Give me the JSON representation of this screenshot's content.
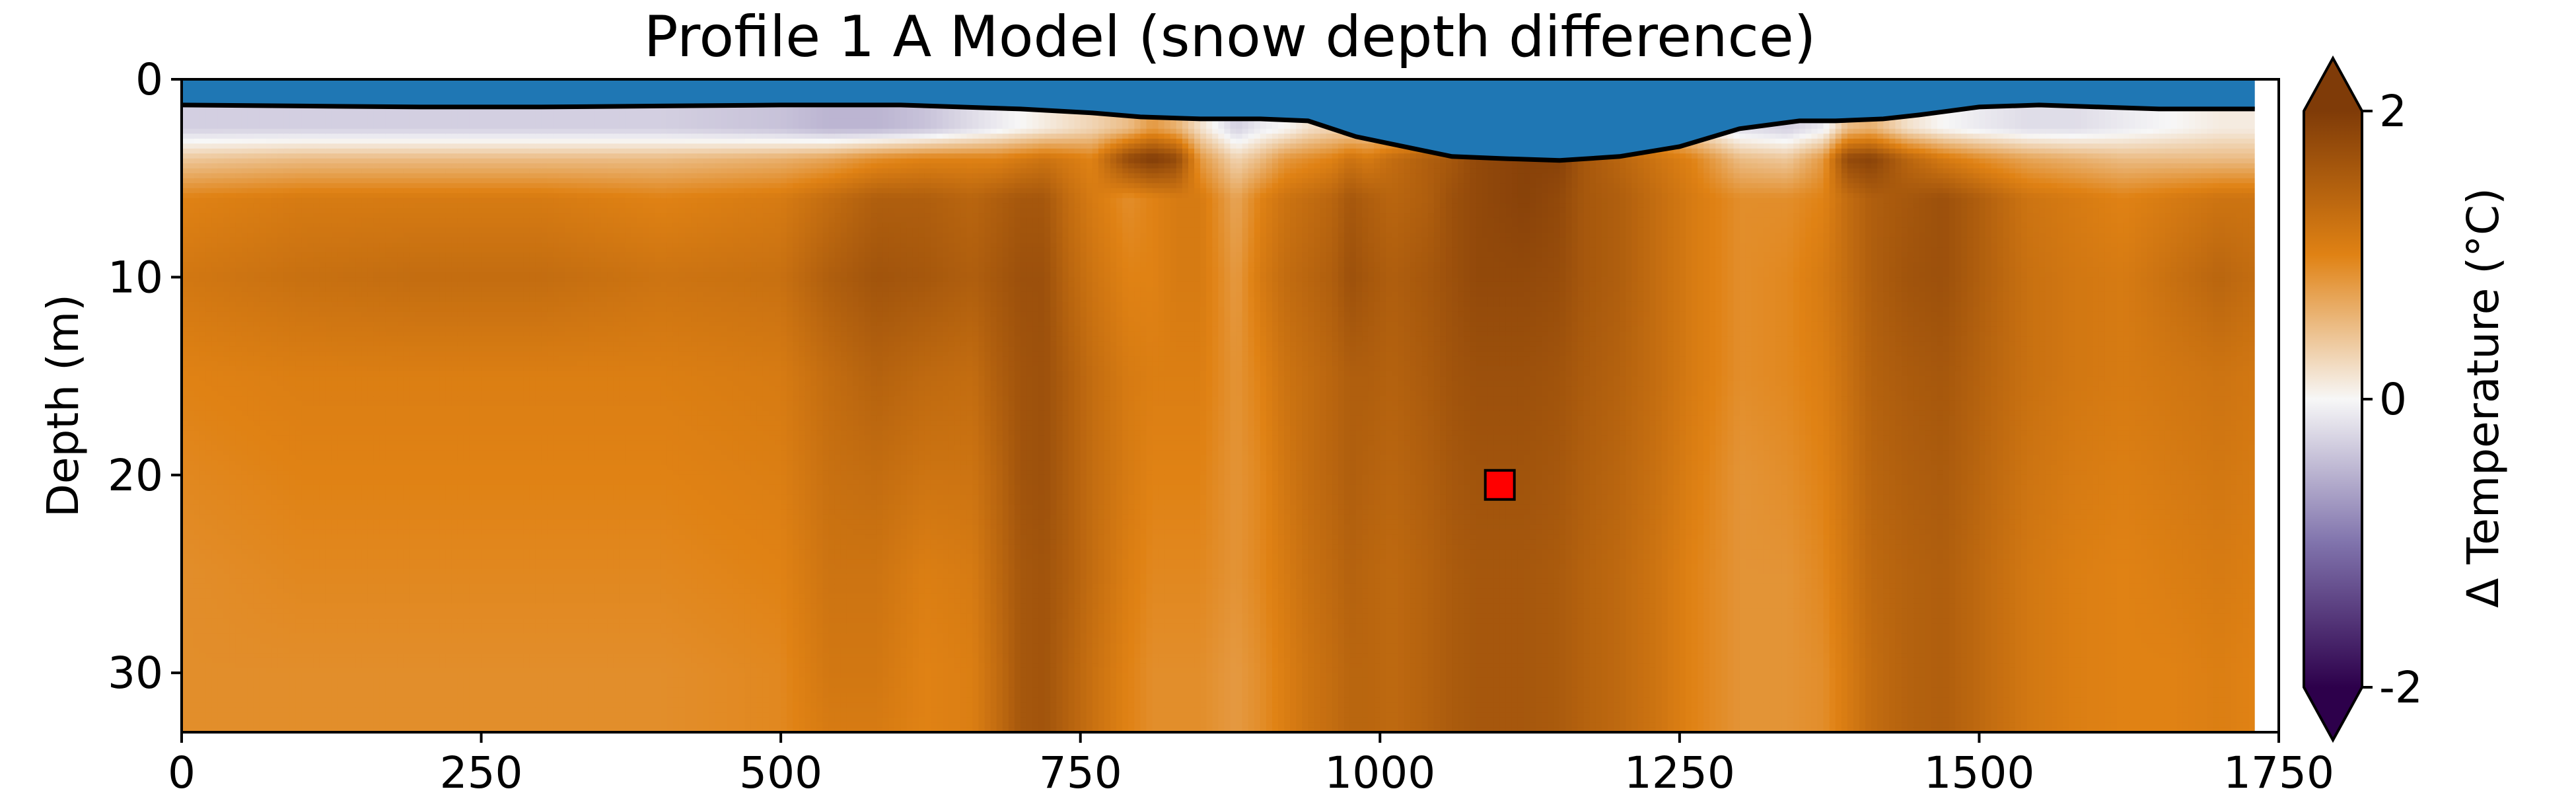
{
  "chart_data": {
    "type": "heatmap",
    "title": "Profile 1 A Model (snow depth difference)",
    "xlabel": "",
    "ylabel": "Depth (m)",
    "xlim": [
      0,
      1750
    ],
    "ylim": [
      33,
      0
    ],
    "x_ticks": [
      0,
      250,
      500,
      750,
      1000,
      1250,
      1500,
      1750
    ],
    "y_ticks": [
      0,
      10,
      20,
      30
    ],
    "colorbar": {
      "label": "Δ Temperature (°C)",
      "range": [
        -2,
        2
      ],
      "ticks": [
        -2,
        0,
        2
      ],
      "tick_labels": [
        "-2",
        "0",
        "2"
      ],
      "extend": "both",
      "colormap": "PuOr_r",
      "colors": [
        "#2d004b",
        "#8073ac",
        "#f7f7f7",
        "#e08214",
        "#7f3b08"
      ]
    },
    "data_extent_x": [
      0,
      1730
    ],
    "surface_line": {
      "x": [
        0,
        100,
        200,
        300,
        400,
        500,
        600,
        700,
        760,
        800,
        850,
        900,
        940,
        980,
        1020,
        1060,
        1100,
        1150,
        1200,
        1250,
        1300,
        1350,
        1380,
        1420,
        1450,
        1500,
        1550,
        1600,
        1650,
        1730
      ],
      "depth": [
        1.3,
        1.35,
        1.4,
        1.4,
        1.35,
        1.3,
        1.3,
        1.5,
        1.7,
        1.9,
        2.0,
        2.0,
        2.1,
        2.9,
        3.4,
        3.9,
        4.0,
        4.1,
        3.9,
        3.4,
        2.5,
        2.1,
        2.1,
        2.0,
        1.8,
        1.4,
        1.3,
        1.4,
        1.5,
        1.5
      ]
    },
    "marker": {
      "x": 1100,
      "depth": 20.5,
      "color": "#ff0000"
    },
    "snow_color": "#1f77b4",
    "field": {
      "x": [
        0,
        100,
        200,
        300,
        400,
        500,
        540,
        580,
        620,
        660,
        680,
        700,
        720,
        740,
        760,
        790,
        810,
        830,
        850,
        880,
        900,
        920,
        940,
        960,
        975,
        990,
        1010,
        1040,
        1060,
        1080,
        1120,
        1150,
        1170,
        1200,
        1230,
        1260,
        1300,
        1340,
        1370,
        1390,
        1410,
        1440,
        1470,
        1500,
        1540,
        1580,
        1620,
        1660,
        1700,
        1730
      ],
      "depth": [
        2.5,
        4,
        6,
        10,
        15,
        20,
        25,
        30,
        33
      ],
      "values": [
        [
          -0.3,
          -0.3,
          -0.3,
          -0.3,
          -0.3,
          -0.4,
          -0.5,
          -0.5,
          -0.4,
          -0.2,
          -0.1,
          0.0,
          0.1,
          0.2,
          0.3,
          0.5,
          0.8,
          0.6,
          0.2,
          -0.3,
          -0.1,
          0.0,
          0.2,
          0.3,
          0.3,
          0.3,
          0.4,
          0.6,
          0.8,
          1.0,
          1.0,
          1.0,
          0.9,
          0.8,
          0.6,
          0.2,
          -0.2,
          -0.3,
          -0.1,
          0.5,
          0.6,
          0.2,
          0.0,
          -0.1,
          -0.2,
          -0.2,
          -0.1,
          0.0,
          0.1,
          0.1
        ],
        [
          0.4,
          0.5,
          0.5,
          0.5,
          0.5,
          0.6,
          0.7,
          0.9,
          1.0,
          1.0,
          1.0,
          1.1,
          1.2,
          1.1,
          1.0,
          1.8,
          2.0,
          1.8,
          0.8,
          0.3,
          0.5,
          0.8,
          0.9,
          1.0,
          1.2,
          1.1,
          1.3,
          1.5,
          1.6,
          1.8,
          1.9,
          1.9,
          1.6,
          1.4,
          1.2,
          1.0,
          0.5,
          0.4,
          0.8,
          1.8,
          1.9,
          1.4,
          1.1,
          0.9,
          0.7,
          0.6,
          0.5,
          0.5,
          0.5,
          0.5
        ],
        [
          1.0,
          1.1,
          1.1,
          1.1,
          1.0,
          1.1,
          1.3,
          1.5,
          1.5,
          1.4,
          1.5,
          1.6,
          1.6,
          1.3,
          1.1,
          0.9,
          1.0,
          1.1,
          1.1,
          0.7,
          1.0,
          1.2,
          1.3,
          1.4,
          1.6,
          1.5,
          1.4,
          1.5,
          1.7,
          1.8,
          1.9,
          1.8,
          1.6,
          1.5,
          1.3,
          1.1,
          0.9,
          0.9,
          1.0,
          1.3,
          1.5,
          1.6,
          1.7,
          1.5,
          1.2,
          1.1,
          1.0,
          1.1,
          1.2,
          1.2
        ],
        [
          1.15,
          1.25,
          1.3,
          1.3,
          1.2,
          1.25,
          1.5,
          1.65,
          1.6,
          1.5,
          1.6,
          1.7,
          1.7,
          1.4,
          1.2,
          1.0,
          1.0,
          1.1,
          1.1,
          0.8,
          1.1,
          1.3,
          1.4,
          1.5,
          1.7,
          1.6,
          1.5,
          1.6,
          1.7,
          1.8,
          1.8,
          1.75,
          1.6,
          1.5,
          1.3,
          1.1,
          0.9,
          0.95,
          1.1,
          1.3,
          1.5,
          1.65,
          1.7,
          1.5,
          1.25,
          1.15,
          1.1,
          1.25,
          1.4,
          1.3
        ],
        [
          1.0,
          1.05,
          1.05,
          1.05,
          1.05,
          1.1,
          1.3,
          1.45,
          1.35,
          1.3,
          1.5,
          1.65,
          1.7,
          1.5,
          1.3,
          1.1,
          1.05,
          1.05,
          1.05,
          0.85,
          1.0,
          1.2,
          1.3,
          1.4,
          1.5,
          1.5,
          1.45,
          1.55,
          1.65,
          1.7,
          1.7,
          1.65,
          1.55,
          1.45,
          1.3,
          1.1,
          0.9,
          0.95,
          1.05,
          1.25,
          1.45,
          1.55,
          1.6,
          1.45,
          1.25,
          1.15,
          1.1,
          1.15,
          1.2,
          1.15
        ],
        [
          0.95,
          1.0,
          1.0,
          1.0,
          1.0,
          1.05,
          1.25,
          1.3,
          1.2,
          1.2,
          1.4,
          1.65,
          1.7,
          1.5,
          1.3,
          1.1,
          1.0,
          1.0,
          1.0,
          0.85,
          0.95,
          1.15,
          1.3,
          1.4,
          1.5,
          1.45,
          1.4,
          1.5,
          1.6,
          1.65,
          1.65,
          1.6,
          1.5,
          1.4,
          1.25,
          1.05,
          0.85,
          0.9,
          1.0,
          1.2,
          1.4,
          1.5,
          1.55,
          1.4,
          1.2,
          1.1,
          1.05,
          1.1,
          1.15,
          1.1
        ],
        [
          0.9,
          0.95,
          0.95,
          0.95,
          0.95,
          1.0,
          1.2,
          1.2,
          1.05,
          1.1,
          1.35,
          1.6,
          1.65,
          1.5,
          1.3,
          1.05,
          0.95,
          0.95,
          0.95,
          0.85,
          0.95,
          1.1,
          1.25,
          1.35,
          1.45,
          1.4,
          1.35,
          1.45,
          1.55,
          1.6,
          1.6,
          1.55,
          1.45,
          1.35,
          1.2,
          1.0,
          0.85,
          0.85,
          0.95,
          1.15,
          1.35,
          1.45,
          1.5,
          1.35,
          1.15,
          1.05,
          1.0,
          1.05,
          1.1,
          1.05
        ],
        [
          0.9,
          0.9,
          0.9,
          0.9,
          0.9,
          0.95,
          1.15,
          1.15,
          1.0,
          1.05,
          1.3,
          1.6,
          1.65,
          1.45,
          1.25,
          1.0,
          0.9,
          0.9,
          0.9,
          0.8,
          0.9,
          1.05,
          1.2,
          1.3,
          1.4,
          1.4,
          1.35,
          1.45,
          1.55,
          1.6,
          1.6,
          1.55,
          1.45,
          1.35,
          1.2,
          1.0,
          0.85,
          0.85,
          0.9,
          1.1,
          1.3,
          1.45,
          1.5,
          1.35,
          1.15,
          1.05,
          1.0,
          1.0,
          1.05,
          1.0
        ],
        [
          0.9,
          0.9,
          0.9,
          0.9,
          0.9,
          0.95,
          1.1,
          1.1,
          1.0,
          1.05,
          1.3,
          1.6,
          1.65,
          1.45,
          1.25,
          1.0,
          0.9,
          0.9,
          0.9,
          0.8,
          0.9,
          1.05,
          1.2,
          1.3,
          1.4,
          1.4,
          1.35,
          1.45,
          1.55,
          1.6,
          1.6,
          1.55,
          1.45,
          1.35,
          1.2,
          1.0,
          0.85,
          0.85,
          0.9,
          1.1,
          1.3,
          1.45,
          1.5,
          1.35,
          1.15,
          1.05,
          1.0,
          1.0,
          1.05,
          1.0
        ]
      ]
    }
  }
}
